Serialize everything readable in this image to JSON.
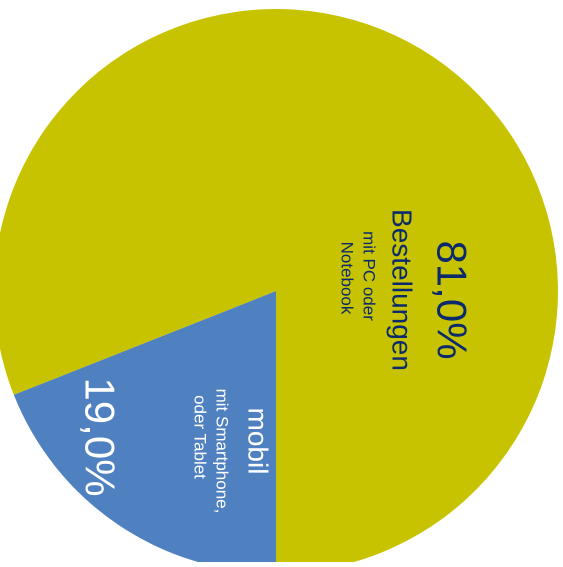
{
  "chart_data": {
    "type": "pie",
    "slices": [
      {
        "value": 81.0,
        "percent_label": "81,0%",
        "label_main": "Bestellungen",
        "label_sub": [
          "mit PC oder",
          "Notebook"
        ],
        "color": "#C8C300",
        "text_color": "#0A2A6B"
      },
      {
        "value": 19.0,
        "percent_label": "19,0%",
        "label_main": "mobil",
        "label_sub": [
          "mit Smartphone,",
          "oder Tablet"
        ],
        "color": "#4F80C0",
        "text_color": "#FFFFFF"
      }
    ]
  }
}
